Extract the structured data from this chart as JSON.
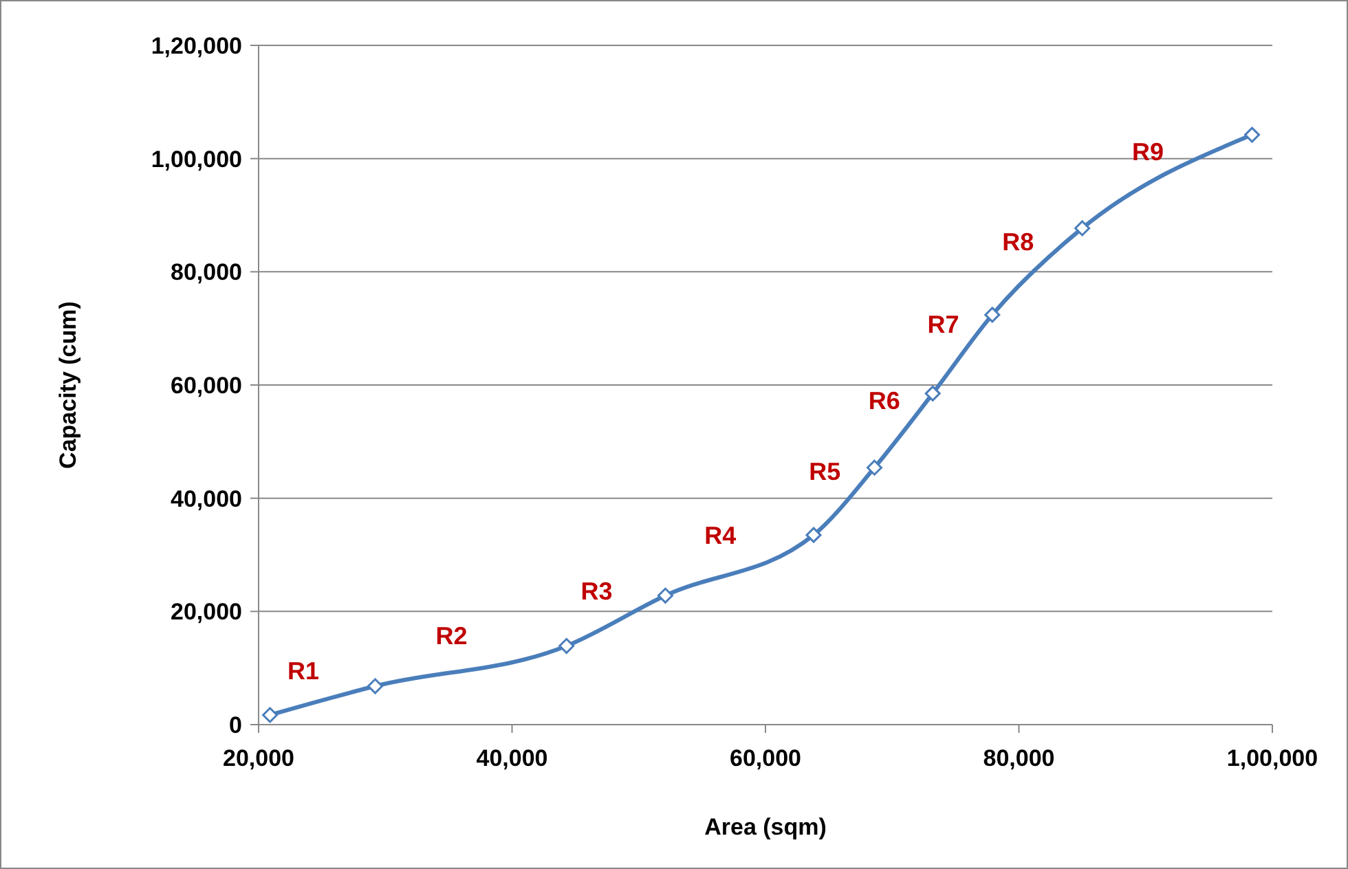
{
  "chart_data": {
    "type": "line",
    "xlabel": "Area (sqm)",
    "ylabel": "Capacity (cum)",
    "x": [
      20900,
      29200,
      44300,
      52100,
      63800,
      68600,
      73200,
      77900,
      85000,
      98400
    ],
    "series": [
      {
        "color": "#4a7ebb",
        "values": [
          1700,
          6800,
          13900,
          22800,
          33500,
          45400,
          58500,
          72400,
          87700,
          104200
        ]
      }
    ],
    "xlim": [
      20000,
      100000
    ],
    "xticks": [
      {
        "value": 20000,
        "label": "20,000"
      },
      {
        "value": 40000,
        "label": "40,000"
      },
      {
        "value": 60000,
        "label": "60,000"
      },
      {
        "value": 80000,
        "label": "80,000"
      },
      {
        "value": 100000,
        "label": "1,00,000"
      }
    ],
    "ylim": [
      0,
      120000
    ],
    "yticks": [
      0,
      {
        "value": 20000,
        "label": "20,000"
      },
      {
        "value": 40000,
        "label": "40,000"
      },
      {
        "value": 60000,
        "label": "60,000"
      },
      {
        "value": 80000,
        "label": "80,000"
      },
      {
        "value": 100000,
        "label": "1,00,000"
      },
      {
        "value": 120000,
        "label": "1,20,000"
      }
    ],
    "grid": "y",
    "marker": "diamond",
    "line_style": "solid",
    "annotations": [
      "R1",
      "R2",
      "R3",
      "R4",
      "R5",
      "R6",
      "R7",
      "R8",
      "R9"
    ]
  }
}
